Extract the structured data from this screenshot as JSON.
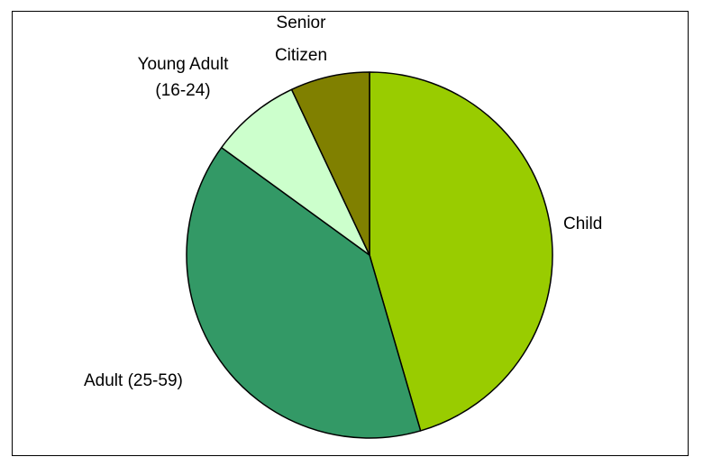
{
  "chart_data": {
    "type": "pie",
    "categories": [
      "Child",
      "Adult (25-59)",
      "Young Adult (16-24)",
      "Senior Citizen"
    ],
    "values": [
      45.5,
      39.5,
      8.0,
      7.0
    ],
    "colors": [
      "#99CC00",
      "#339966",
      "#CCFFCC",
      "#808000"
    ],
    "start_angle_deg": 0,
    "direction": "clockwise",
    "legend": "none",
    "labels": {
      "child": [
        "Child"
      ],
      "adult": [
        "Adult (25-59)"
      ],
      "young_adult": [
        "Young Adult",
        "(16-24)"
      ],
      "senior": [
        "Senior",
        "Citizen"
      ]
    }
  }
}
